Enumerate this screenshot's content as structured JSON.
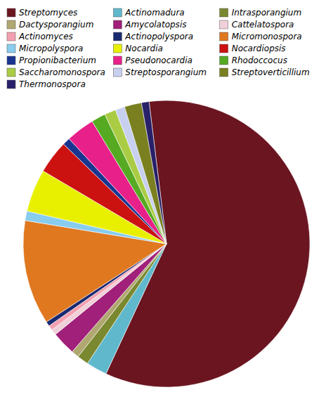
{
  "chart_data": {
    "type": "pie",
    "categories": [
      "Streptomyces",
      "Actinomadura",
      "Intrasporangium",
      "Dactysporangium",
      "Amycolatopsis",
      "Cattelatospora",
      "Actinomyces",
      "Actinopolyspora",
      "Micromonospora",
      "Micropolyspora",
      "Nocardia",
      "Nocardiopsis",
      "Propionibacterium",
      "Pseudonocardia",
      "Rhodoccocus",
      "Saccharomonospora",
      "Streptosporangium",
      "Streptoverticillium",
      "Thermonospora"
    ],
    "values": [
      55.0,
      2.2,
      1.2,
      0.8,
      2.5,
      0.6,
      0.5,
      0.5,
      11.0,
      1.0,
      4.5,
      3.5,
      0.8,
      3.0,
      1.5,
      1.2,
      1.0,
      1.8,
      0.8
    ],
    "colors": [
      "#6B1520",
      "#60B8CC",
      "#7A8830",
      "#B0A870",
      "#A0207A",
      "#F0D0D8",
      "#F4A0B0",
      "#1A2A70",
      "#E07820",
      "#88CCEE",
      "#E8F000",
      "#CC1111",
      "#1A3590",
      "#E8208A",
      "#55AA22",
      "#AACC44",
      "#C8D0F0",
      "#7A8020",
      "#282068"
    ],
    "legend": "top"
  }
}
